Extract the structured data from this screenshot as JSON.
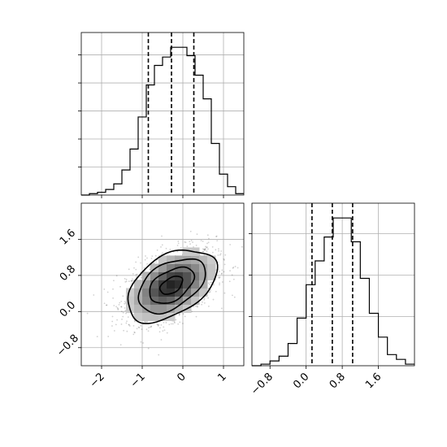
{
  "chart_data": [
    {
      "panel": "x-marginal",
      "type": "histogram",
      "xlim": [
        -2.5,
        1.5
      ],
      "bins": [
        -2.5,
        -2.3,
        -2.1,
        -1.9,
        -1.7,
        -1.5,
        -1.3,
        -1.1,
        -0.9,
        -0.7,
        -0.5,
        -0.3,
        -0.1,
        0.1,
        0.3,
        0.5,
        0.7,
        0.9,
        1.1,
        1.3,
        1.5
      ],
      "counts": [
        0,
        1,
        2,
        4,
        8,
        18,
        33,
        56,
        79,
        93,
        99,
        106,
        106,
        100,
        86,
        69,
        37,
        15,
        6,
        1
      ],
      "quantiles": [
        -0.85,
        -0.28,
        0.27
      ],
      "grid": true
    },
    {
      "panel": "y-marginal",
      "type": "histogram",
      "xlim": [
        -1.2,
        2.4
      ],
      "xticks": [
        "−0.8",
        "0.0",
        "0.8",
        "1.6"
      ],
      "bins": [
        -1.2,
        -1.0,
        -0.8,
        -0.6,
        -0.4,
        -0.2,
        0.0,
        0.2,
        0.4,
        0.6,
        0.8,
        1.0,
        1.2,
        1.4,
        1.6,
        1.8,
        2.0,
        2.2,
        2.4
      ],
      "counts": [
        0,
        1,
        3,
        6,
        14,
        30,
        51,
        66,
        81,
        93,
        93,
        78,
        55,
        33,
        18,
        7,
        4,
        1
      ],
      "quantiles": [
        0.13,
        0.58,
        1.03
      ],
      "grid": true
    },
    {
      "panel": "joint",
      "type": "2d-histogram-contour",
      "xlim": [
        -2.5,
        1.5
      ],
      "ylim": [
        -1.2,
        2.4
      ],
      "xticks": [
        "−2",
        "−1",
        "0",
        "1"
      ],
      "yticks": [
        "−0.8",
        "0.0",
        "0.8",
        "1.6"
      ],
      "center": [
        -0.28,
        0.58
      ],
      "sigma_x": 0.55,
      "sigma_y": 0.4,
      "correlation": 0.45,
      "contour_levels_sigma": [
        0.5,
        1.0,
        1.5,
        2.0
      ],
      "grid": true
    }
  ]
}
